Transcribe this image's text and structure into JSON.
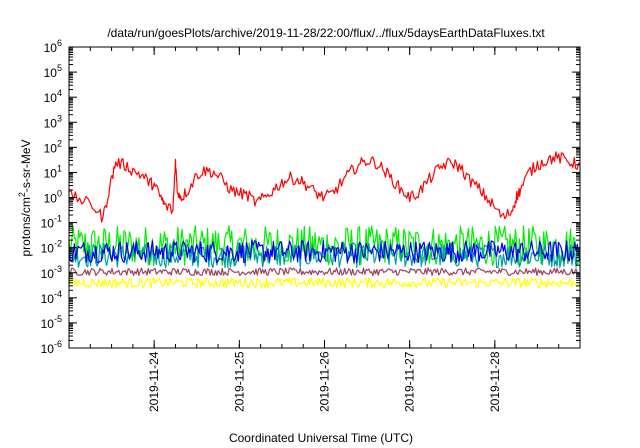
{
  "chart_data": {
    "type": "line",
    "title": "/data/run/goesPlots/archive/2019-11-28/22:00/flux/../flux/5daysEarthDataFluxes.txt",
    "xlabel": "Coordinated Universal Time (UTC)",
    "ylabel": "protons/cm2-s-sr-MeV",
    "ylabel_parts": {
      "base": "protons/cm",
      "sup": "2",
      "rest": "-s-sr-MeV"
    },
    "yscale": "log",
    "ylim": [
      1e-06,
      1000000.0
    ],
    "xlim": [
      23.0,
      29.0
    ],
    "grid": false,
    "legend": "none",
    "x_ticks": [
      {
        "x": 24,
        "label": "2019-11-24"
      },
      {
        "x": 25,
        "label": "2019-11-25"
      },
      {
        "x": 26,
        "label": "2019-11-26"
      },
      {
        "x": 27,
        "label": "2019-11-27"
      },
      {
        "x": 28,
        "label": "2019-11-28"
      }
    ],
    "y_ticks": [
      {
        "exp": -6,
        "label_base": "10",
        "label_exp": "-6"
      },
      {
        "exp": -5,
        "label_base": "10",
        "label_exp": "-5"
      },
      {
        "exp": -4,
        "label_base": "10",
        "label_exp": "-4"
      },
      {
        "exp": -3,
        "label_base": "10",
        "label_exp": "-3"
      },
      {
        "exp": -2,
        "label_base": "10",
        "label_exp": "-2"
      },
      {
        "exp": -1,
        "label_base": "10",
        "label_exp": "-1"
      },
      {
        "exp": 0,
        "label_base": "10",
        "label_exp": "0"
      },
      {
        "exp": 1,
        "label_base": "10",
        "label_exp": "1"
      },
      {
        "exp": 2,
        "label_base": "10",
        "label_exp": "2"
      },
      {
        "exp": 3,
        "label_base": "10",
        "label_exp": "3"
      },
      {
        "exp": 4,
        "label_base": "10",
        "label_exp": "4"
      },
      {
        "exp": 5,
        "label_base": "10",
        "label_exp": "5"
      },
      {
        "exp": 6,
        "label_base": "10",
        "label_exp": "6"
      }
    ],
    "series": [
      {
        "color": "#ff0000",
        "noise": 0.06,
        "x": [
          23.0,
          23.15,
          23.3,
          23.4,
          23.48,
          23.55,
          23.65,
          23.75,
          23.85,
          23.95,
          24.0,
          24.08,
          24.12,
          24.22,
          24.25,
          24.27,
          24.32,
          24.4,
          24.5,
          24.6,
          24.7,
          24.8,
          24.9,
          25.0,
          25.1,
          25.2,
          25.3,
          25.4,
          25.5,
          25.6,
          25.7,
          25.8,
          25.9,
          26.0,
          26.1,
          26.2,
          26.3,
          26.4,
          26.5,
          26.6,
          26.7,
          26.8,
          26.9,
          27.0,
          27.1,
          27.2,
          27.3,
          27.4,
          27.5,
          27.6,
          27.7,
          27.8,
          27.9,
          28.0,
          28.1,
          28.2,
          28.25,
          28.3,
          28.4,
          28.5,
          28.6,
          28.7,
          28.8,
          28.9,
          29.0
        ],
        "y": [
          1.2,
          0.8,
          0.4,
          0.15,
          3,
          25,
          20,
          12,
          8,
          4,
          3,
          1,
          0.5,
          0.3,
          30,
          2,
          1,
          2,
          8,
          12,
          10,
          5,
          2,
          1.5,
          1.2,
          0.6,
          1,
          2,
          4,
          6,
          5,
          3,
          1.5,
          1,
          1.5,
          4,
          10,
          20,
          30,
          25,
          12,
          5,
          2,
          1,
          1.5,
          4,
          10,
          20,
          25,
          15,
          5,
          2.5,
          1,
          0.4,
          0.15,
          0.3,
          1,
          2,
          10,
          20,
          30,
          40,
          35,
          25,
          20
        ]
      },
      {
        "color": "#00ee00",
        "center": 0.012,
        "spread": 0.8,
        "count": 380
      },
      {
        "color": "#00a0a0",
        "center": 0.005,
        "spread": 0.5,
        "count": 380
      },
      {
        "color": "#0000ee",
        "center": 0.007,
        "spread": 0.45,
        "count": 380
      },
      {
        "color": "#ffff00",
        "center": 0.0004,
        "spread": 0.2,
        "count": 380
      },
      {
        "color": "#a04060",
        "center": 0.0011,
        "spread": 0.15,
        "count": 380
      }
    ]
  }
}
